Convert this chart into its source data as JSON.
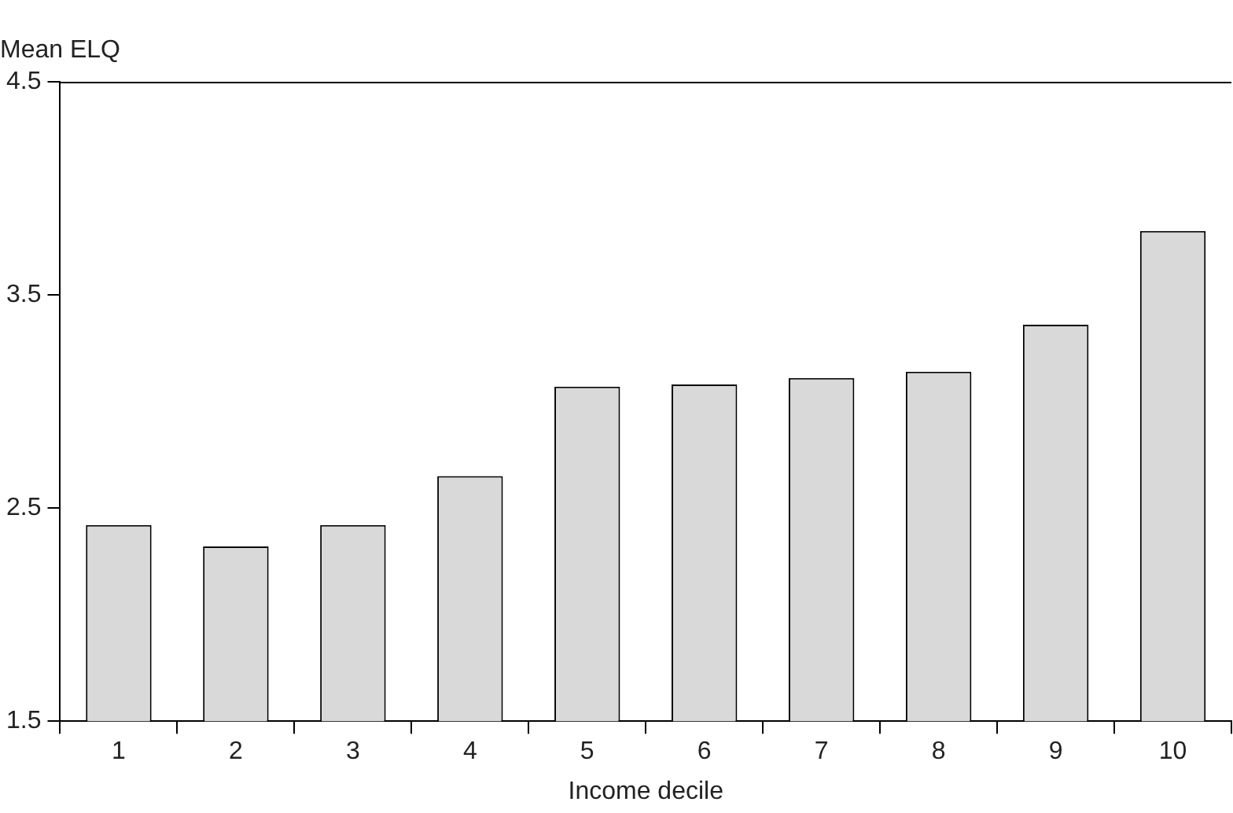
{
  "chart_data": {
    "type": "bar",
    "ylabel": "Mean ELQ",
    "xlabel": "Income decile",
    "categories": [
      "1",
      "2",
      "3",
      "4",
      "5",
      "6",
      "7",
      "8",
      "9",
      "10"
    ],
    "values": [
      2.42,
      2.32,
      2.42,
      2.65,
      3.07,
      3.08,
      3.11,
      3.14,
      3.36,
      3.8
    ],
    "color": "#d9d9d9",
    "ylim": [
      1.5,
      4.5
    ],
    "yticks": [
      1.5,
      2.5,
      3.5,
      4.5
    ],
    "grid": false,
    "legend": false
  }
}
